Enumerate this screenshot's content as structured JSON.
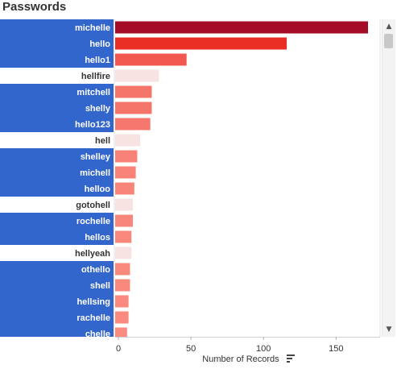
{
  "chart_data": {
    "type": "bar",
    "orientation": "horizontal",
    "title": "Passwords",
    "xlabel": "Number of Records",
    "ylabel": "",
    "xlim": [
      0,
      175
    ],
    "xticks": [
      0,
      50,
      100,
      150
    ],
    "grid": false,
    "legend": "none",
    "categories": [
      "michelle",
      "hello",
      "hello1",
      "hellfire",
      "mitchell",
      "shelly",
      "hello123",
      "hell",
      "shelley",
      "michell",
      "helloo",
      "gotohell",
      "rochelle",
      "hellos",
      "hellyeah",
      "othello",
      "shell",
      "hellsing",
      "rachelle",
      "chelle"
    ],
    "values": [
      172,
      116,
      47,
      28,
      23,
      23,
      22,
      15,
      13,
      12,
      11,
      10,
      10,
      9,
      9,
      8,
      8,
      7,
      7,
      6
    ],
    "highlighted": [
      true,
      true,
      true,
      false,
      true,
      true,
      true,
      false,
      true,
      true,
      true,
      false,
      true,
      true,
      false,
      true,
      true,
      true,
      true,
      true
    ]
  },
  "colors": {
    "highlight_bg": "#3366cc",
    "highlight_text": "#ffffff",
    "normal_text": "#333333",
    "bar_max": "#9e0a24",
    "bar_mid": "#e9251e",
    "bar_low": "#fb9287",
    "bar_min": "#f8e3e3"
  }
}
